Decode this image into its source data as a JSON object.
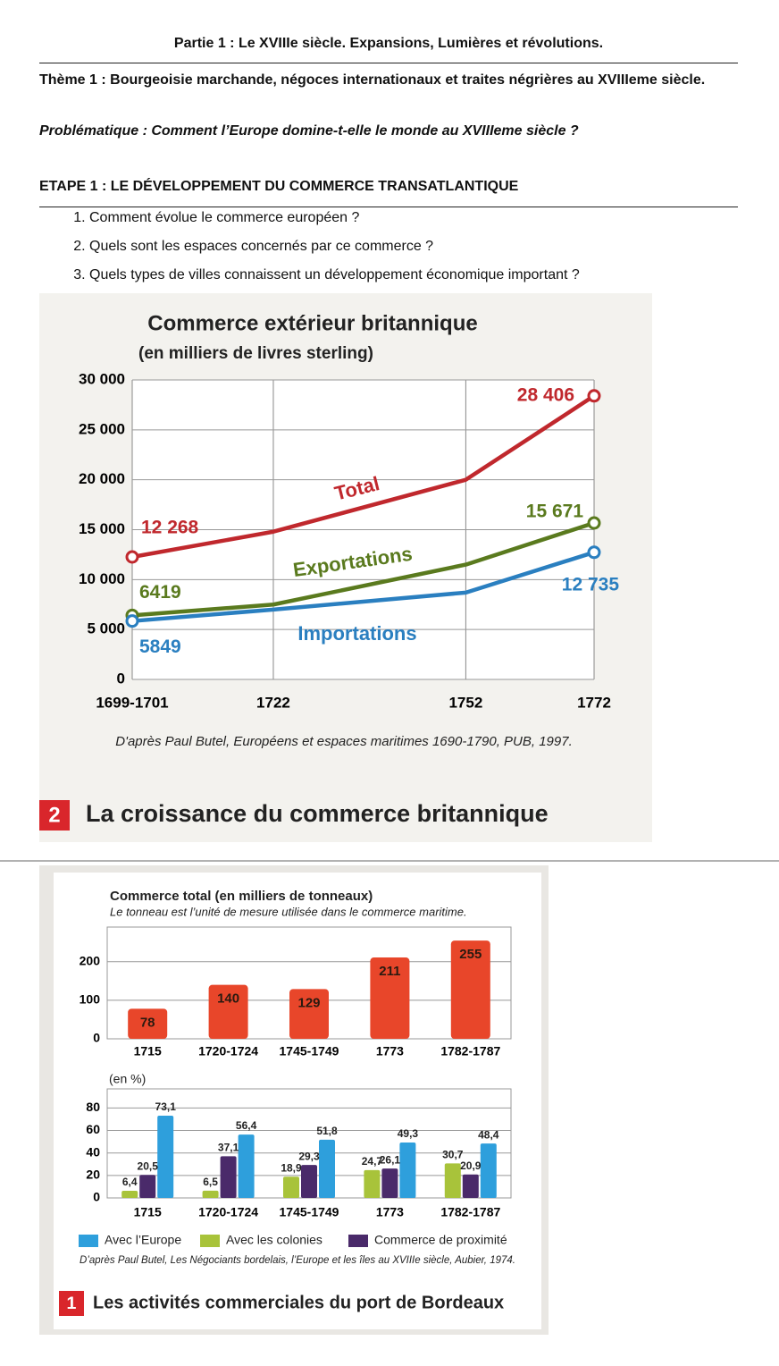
{
  "header": {
    "partie": "Partie 1 : Le XVIIIe siècle. Expansions, Lumières et révolutions.",
    "theme": "Thème 1 : Bourgeoisie marchande, négoces internationaux et traites négrières au XVIIIeme siècle.",
    "problematique": "Problématique : Comment l’Europe domine-t-elle le monde au XVIIIeme siècle ?",
    "etape": "ETAPE 1 : LE DÉVELOPPEMENT DU COMMERCE TRANSATLANTIQUE",
    "questions": [
      "Comment évolue le commerce européen ?",
      "Quels sont les espaces concernés par ce commerce ?",
      "Quels types de villes connaissent un développement économique important ?"
    ]
  },
  "figures": [
    {
      "number": "2",
      "caption": "La croissance du commerce britannique",
      "source": "D'après Paul Butel, Européens et espaces maritimes 1690-1790, PUB, 1997."
    },
    {
      "number": "1",
      "caption": "Les activités commerciales du port de Bordeaux",
      "source": "D’après Paul Butel, Les Négociants bordelais, l’Europe et les îles au XVIIIe siècle, Aubier, 1974."
    }
  ],
  "chart_data": [
    {
      "type": "line",
      "title": "Commerce extérieur britannique",
      "subtitle": "(en milliers de livres sterling)",
      "x": [
        1700,
        1722,
        1752,
        1772
      ],
      "xlim": [
        1700,
        1772
      ],
      "xticks": [
        {
          "value": 1700,
          "label": "1699-1701"
        },
        1722,
        1752,
        1772
      ],
      "ylim": [
        0,
        30000
      ],
      "yticks": [
        0,
        {
          "value": 5000,
          "label": "5 000"
        },
        {
          "value": 10000,
          "label": "10 000"
        },
        {
          "value": 15000,
          "label": "15 000"
        },
        {
          "value": 20000,
          "label": "20 000"
        },
        {
          "value": 25000,
          "label": "25 000"
        },
        {
          "value": 30000,
          "label": "30 000"
        }
      ],
      "grid": true,
      "series": [
        {
          "name": "Total",
          "color": "#c0282d",
          "values": [
            12268,
            14800,
            20000,
            28406
          ],
          "value_labels": [
            "12 268",
            null,
            null,
            "28 406"
          ]
        },
        {
          "name": "Exportations",
          "color": "#5a7a1e",
          "values": [
            6419,
            7500,
            11500,
            15671
          ],
          "value_labels": [
            "6419",
            null,
            null,
            "15 671"
          ]
        },
        {
          "name": "Importations",
          "color": "#2a7fc0",
          "values": [
            5849,
            7000,
            8700,
            12735
          ],
          "value_labels": [
            "5849",
            null,
            null,
            "12 735"
          ]
        }
      ]
    },
    {
      "type": "bar",
      "title": "Commerce total (en milliers de tonneaux)",
      "subtitle": "Le tonneau est l’unité de mesure utilisée dans le commerce maritime.",
      "categories": [
        "1715",
        "1720-1724",
        "1745-1749",
        "1773",
        "1782-1787"
      ],
      "values": [
        78,
        140,
        129,
        211,
        255
      ],
      "color": "#e8462a",
      "ylim": [
        0,
        290
      ],
      "yticks": [
        0,
        100,
        200
      ],
      "grid": true
    },
    {
      "type": "bar",
      "y_label": "(en %)",
      "categories": [
        "1715",
        "1720-1724",
        "1745-1749",
        "1773",
        "1782-1787"
      ],
      "ylim": [
        0,
        97
      ],
      "yticks": [
        0,
        20,
        40,
        60,
        80
      ],
      "grid": true,
      "series": [
        {
          "name": "Avec l’Europe",
          "color": "#2e9fdc",
          "values": [
            73.1,
            56.4,
            51.8,
            49.3,
            48.4
          ],
          "value_labels": [
            "73,1",
            "56,4",
            "51,8",
            "49,3",
            "48,4"
          ]
        },
        {
          "name": "Avec les colonies",
          "color": "#a8c33a",
          "values": [
            6.4,
            6.5,
            18.9,
            24.7,
            30.7
          ],
          "value_labels": [
            "6,4",
            "6,5",
            "18,9",
            "24,7",
            "30,7"
          ]
        },
        {
          "name": "Commerce de proximité",
          "color": "#4a2a6a",
          "values": [
            20.5,
            37.1,
            29.3,
            26.1,
            20.9
          ],
          "value_labels": [
            "20,5",
            "37,1",
            "29,3",
            "26,1",
            "20,9"
          ]
        }
      ]
    }
  ]
}
